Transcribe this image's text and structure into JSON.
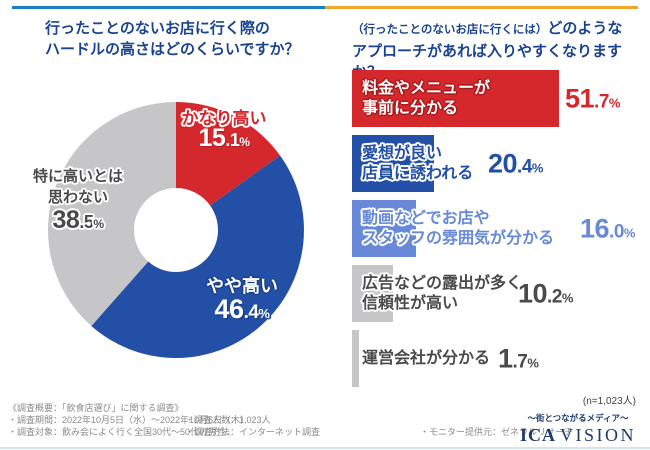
{
  "colors": {
    "red": "#d5282c",
    "blue": "#2350a6",
    "light_blue": "#6789d7",
    "gray": "#c6c6c8",
    "title_navy": "#1a4390",
    "dark_gray": "#4a4a4a",
    "rule_blue": "#1b7fc4",
    "rule_orange": "#f0a72e",
    "logo_navy": "#1d3a6e",
    "bottom_rule": "#cfe4f5"
  },
  "left_chart": {
    "title_line1": "行ったことのないお店に行く際の",
    "title_line2": "ハードルの高さはどのくらいですか？"
  },
  "right_chart": {
    "title_paren": "（行ったことのないお店に行くには）",
    "title_rest": "どのような",
    "title_line2": "アプローチがあれば入りやすくなりますか？"
  },
  "chart_data": [
    {
      "type": "pie",
      "subtype": "donut",
      "title": "行ったことのないお店に行く際のハードルの高さはどのくらいですか？",
      "labels": [
        "かなり高い",
        "やや高い",
        "特に高いとは思わない"
      ],
      "values": [
        15.1,
        46.4,
        38.5
      ],
      "display_values": [
        "15.1",
        "46.4",
        "38.5"
      ],
      "colors": [
        "#d5282c",
        "#2350a6",
        "#c6c6c8"
      ],
      "start_angle": "top",
      "direction": "clockwise",
      "unit": "%"
    },
    {
      "type": "bar",
      "orientation": "horizontal",
      "title": "（行ったことのないお店に行くには）どのようなアプローチがあれば入りやすくなりますか？",
      "categories": [
        "料金やメニューが事前に分かる",
        "愛想が良い店員に誘われる",
        "動画などでお店やスタッフの雰囲気が分かる",
        "広告などの露出が多く信頼性が高い",
        "運営会社が分かる"
      ],
      "category_lines": [
        [
          "料金やメニューが",
          "事前に分かる"
        ],
        [
          "愛想が良い",
          "店員に誘われる"
        ],
        [
          "動画などでお店や",
          "スタッフの雰囲気が分かる"
        ],
        [
          "広告などの露出が多く",
          "信頼性が高い"
        ],
        [
          "運営会社が分かる"
        ]
      ],
      "values": [
        51.7,
        20.4,
        16.0,
        10.2,
        1.7
      ],
      "display_values": [
        "51.7",
        "20.4",
        "16.0",
        "10.2",
        "1.7"
      ],
      "colors": [
        "#d5282c",
        "#2350a6",
        "#6789d7",
        "#c6c6c8",
        "#c6c6c8"
      ],
      "label_colors": [
        "#ffffff",
        "#2350a6",
        "#6789d7",
        "#4a4a4a",
        "#4a4a4a"
      ],
      "value_colors": [
        "#d5282c",
        "#2350a6",
        "#6789d7",
        "#4a4a4a",
        "#4a4a4a"
      ],
      "xlim": [
        0,
        55
      ],
      "unit": "%"
    }
  ],
  "pie_overlay": {
    "kanari_label": "かなり高い",
    "yaya_label": "やや高い",
    "toku_line1": "特に高いとは",
    "toku_line2": "思わない"
  },
  "sample_note": "(n=1,023人)",
  "footer": {
    "line1": "《調査概要：「飲食店選び」に関する調査》",
    "period": "・調査期間：2022年10月5日（水）～2022年10月6日（木）",
    "people": "・調査人数：1,023人",
    "target": "・調査対象：飲み会によく行く全国30代～50代の男性",
    "method": "・調査方法：インターネット調査",
    "monitor": "・モニター提供元：ゼネラルリサーチ"
  },
  "branding": {
    "tagline": "～街とつながるメディア～",
    "logo_main": "ICA",
    "logo_sub": "VISION"
  }
}
